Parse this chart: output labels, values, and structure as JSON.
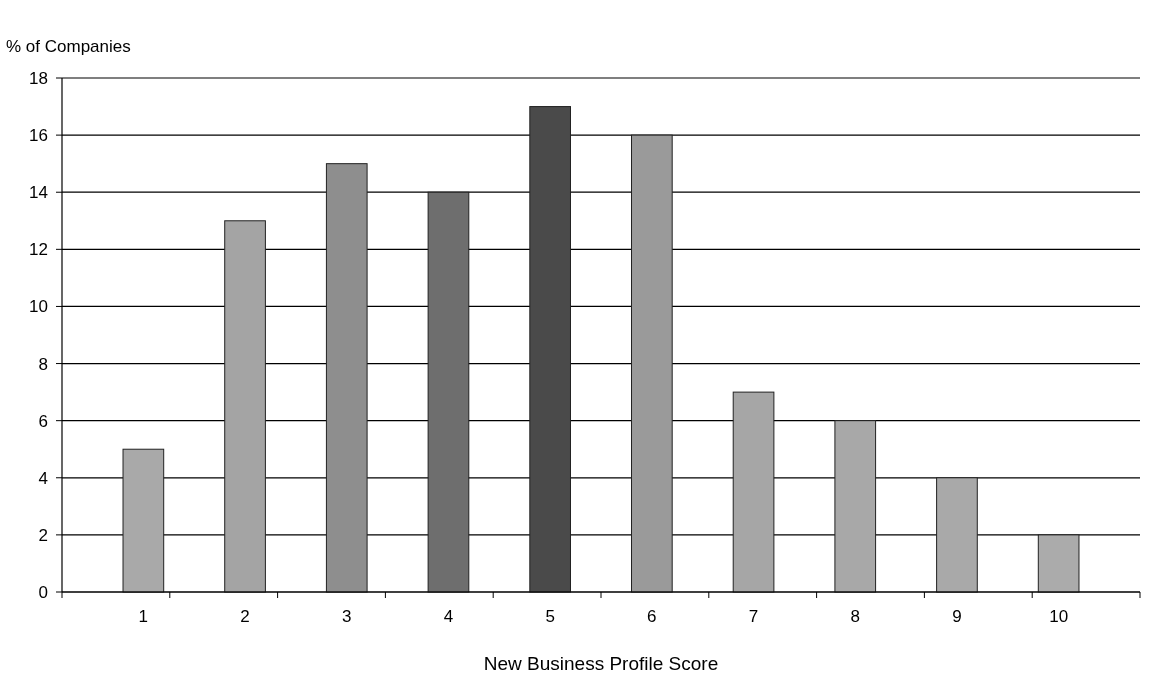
{
  "chart_data": {
    "type": "bar",
    "xlabel": "New Business Profile Score",
    "ylabel": "% of Companies",
    "categories": [
      "1",
      "2",
      "3",
      "4",
      "5",
      "6",
      "7",
      "8",
      "9",
      "10"
    ],
    "values": [
      5,
      13,
      15,
      14,
      17,
      16,
      7,
      6,
      4,
      2
    ],
    "colors": [
      "#a9a9a9",
      "#a4a4a4",
      "#8e8e8e",
      "#6e6e6e",
      "#4a4a4a",
      "#9a9a9a",
      "#a6a6a6",
      "#a8a8a8",
      "#a9a9a9",
      "#ababab"
    ],
    "ylim": [
      0,
      18
    ],
    "yticks": [
      0,
      2,
      4,
      6,
      8,
      10,
      12,
      14,
      16,
      18
    ],
    "grid": "y"
  }
}
